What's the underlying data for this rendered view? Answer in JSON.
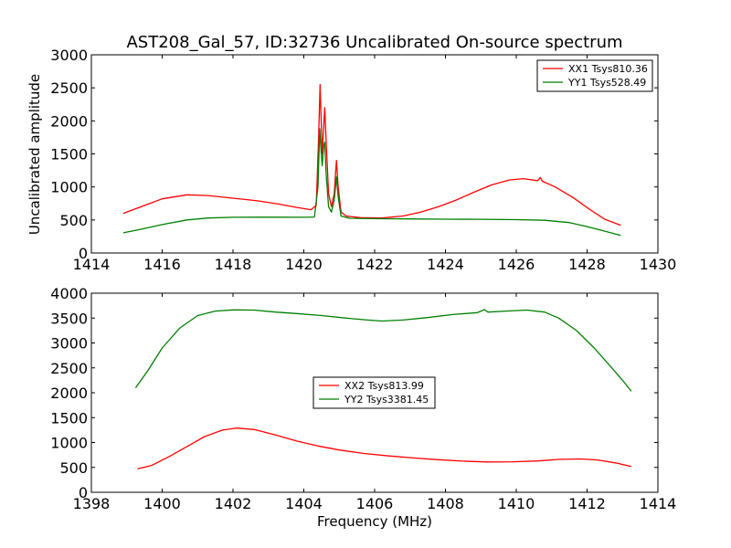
{
  "figure": {
    "title": "AST208_Gal_57, ID:32736 Uncalibrated On-source spectrum",
    "ylabel": "Uncalibrated amplitude",
    "xlabel": "Frequency (MHz)"
  },
  "chart_data": [
    {
      "type": "line",
      "title": "AST208_Gal_57, ID:32736 Uncalibrated On-source spectrum",
      "ylabel": "Uncalibrated amplitude",
      "xlabel": "",
      "xlim": [
        1414,
        1430
      ],
      "ylim": [
        0,
        3000
      ],
      "xticks": [
        1414,
        1416,
        1418,
        1420,
        1422,
        1424,
        1426,
        1428,
        1430
      ],
      "yticks": [
        0,
        500,
        1000,
        1500,
        2000,
        2500,
        3000
      ],
      "legend": "top-right",
      "grid": false,
      "series": [
        {
          "name": "XX1 Tsys810.36",
          "color": "#ff0000",
          "points": [
            [
              1414.9,
              600
            ],
            [
              1415.4,
              700
            ],
            [
              1416.0,
              820
            ],
            [
              1416.7,
              880
            ],
            [
              1417.3,
              870
            ],
            [
              1418.0,
              830
            ],
            [
              1418.7,
              790
            ],
            [
              1419.3,
              740
            ],
            [
              1419.8,
              690
            ],
            [
              1420.2,
              655
            ],
            [
              1420.35,
              720
            ],
            [
              1420.42,
              1800
            ],
            [
              1420.46,
              2550
            ],
            [
              1420.49,
              2000
            ],
            [
              1420.52,
              1500
            ],
            [
              1420.56,
              1900
            ],
            [
              1420.59,
              2200
            ],
            [
              1420.63,
              1700
            ],
            [
              1420.7,
              900
            ],
            [
              1420.78,
              700
            ],
            [
              1420.86,
              900
            ],
            [
              1420.92,
              1400
            ],
            [
              1420.97,
              1000
            ],
            [
              1421.05,
              620
            ],
            [
              1421.2,
              560
            ],
            [
              1421.6,
              535
            ],
            [
              1422.2,
              530
            ],
            [
              1422.8,
              560
            ],
            [
              1423.3,
              620
            ],
            [
              1423.8,
              700
            ],
            [
              1424.3,
              800
            ],
            [
              1424.8,
              920
            ],
            [
              1425.3,
              1030
            ],
            [
              1425.8,
              1105
            ],
            [
              1426.2,
              1125
            ],
            [
              1426.6,
              1095
            ],
            [
              1426.68,
              1140
            ],
            [
              1426.74,
              1085
            ],
            [
              1427.1,
              1000
            ],
            [
              1427.6,
              840
            ],
            [
              1428.1,
              650
            ],
            [
              1428.5,
              510
            ],
            [
              1428.95,
              420
            ]
          ]
        },
        {
          "name": "YY1 Tsys528.49",
          "color": "#008000",
          "points": [
            [
              1414.9,
              305
            ],
            [
              1415.4,
              360
            ],
            [
              1416.0,
              430
            ],
            [
              1416.7,
              500
            ],
            [
              1417.3,
              530
            ],
            [
              1418.0,
              540
            ],
            [
              1418.7,
              542
            ],
            [
              1419.3,
              542
            ],
            [
              1420.0,
              540
            ],
            [
              1420.3,
              545
            ],
            [
              1420.4,
              1000
            ],
            [
              1420.45,
              1880
            ],
            [
              1420.48,
              1600
            ],
            [
              1420.52,
              1320
            ],
            [
              1420.56,
              1620
            ],
            [
              1420.59,
              1680
            ],
            [
              1420.63,
              1200
            ],
            [
              1420.7,
              700
            ],
            [
              1420.78,
              620
            ],
            [
              1420.86,
              800
            ],
            [
              1420.92,
              1150
            ],
            [
              1420.97,
              850
            ],
            [
              1421.05,
              560
            ],
            [
              1421.3,
              525
            ],
            [
              1422.0,
              520
            ],
            [
              1423.0,
              515
            ],
            [
              1424.0,
              512
            ],
            [
              1425.0,
              510
            ],
            [
              1426.0,
              505
            ],
            [
              1426.8,
              495
            ],
            [
              1427.5,
              460
            ],
            [
              1428.0,
              400
            ],
            [
              1428.5,
              330
            ],
            [
              1428.95,
              265
            ]
          ]
        }
      ]
    },
    {
      "type": "line",
      "title": "",
      "ylabel": "",
      "xlabel": "Frequency (MHz)",
      "xlim": [
        1398,
        1414
      ],
      "ylim": [
        0,
        4000
      ],
      "xticks": [
        1398,
        1400,
        1402,
        1404,
        1406,
        1408,
        1410,
        1412,
        1414
      ],
      "yticks": [
        0,
        500,
        1000,
        1500,
        2000,
        2500,
        3000,
        3500,
        4000
      ],
      "legend": "center",
      "grid": false,
      "series": [
        {
          "name": "XX2 Tsys813.99",
          "color": "#ff0000",
          "points": [
            [
              1399.3,
              470
            ],
            [
              1399.7,
              540
            ],
            [
              1400.2,
              720
            ],
            [
              1400.7,
              920
            ],
            [
              1401.2,
              1120
            ],
            [
              1401.7,
              1250
            ],
            [
              1402.1,
              1290
            ],
            [
              1402.6,
              1260
            ],
            [
              1403.2,
              1150
            ],
            [
              1403.8,
              1030
            ],
            [
              1404.4,
              930
            ],
            [
              1405.0,
              850
            ],
            [
              1405.7,
              780
            ],
            [
              1406.4,
              730
            ],
            [
              1407.1,
              690
            ],
            [
              1407.8,
              655
            ],
            [
              1408.5,
              625
            ],
            [
              1409.2,
              610
            ],
            [
              1409.9,
              612
            ],
            [
              1410.6,
              630
            ],
            [
              1411.2,
              660
            ],
            [
              1411.8,
              670
            ],
            [
              1412.3,
              650
            ],
            [
              1412.8,
              590
            ],
            [
              1413.25,
              520
            ]
          ]
        },
        {
          "name": "YY2 Tsys3381.45",
          "color": "#008000",
          "points": [
            [
              1399.25,
              2100
            ],
            [
              1399.6,
              2450
            ],
            [
              1400.0,
              2900
            ],
            [
              1400.5,
              3300
            ],
            [
              1401.0,
              3550
            ],
            [
              1401.5,
              3640
            ],
            [
              1402.0,
              3665
            ],
            [
              1402.6,
              3660
            ],
            [
              1403.2,
              3620
            ],
            [
              1403.8,
              3590
            ],
            [
              1404.5,
              3550
            ],
            [
              1405.2,
              3500
            ],
            [
              1405.8,
              3460
            ],
            [
              1406.2,
              3440
            ],
            [
              1406.8,
              3460
            ],
            [
              1407.5,
              3510
            ],
            [
              1408.2,
              3570
            ],
            [
              1408.9,
              3610
            ],
            [
              1409.1,
              3670
            ],
            [
              1409.2,
              3620
            ],
            [
              1409.7,
              3640
            ],
            [
              1410.3,
              3660
            ],
            [
              1410.8,
              3620
            ],
            [
              1411.2,
              3500
            ],
            [
              1411.7,
              3250
            ],
            [
              1412.2,
              2900
            ],
            [
              1412.7,
              2500
            ],
            [
              1413.0,
              2250
            ],
            [
              1413.25,
              2030
            ]
          ]
        }
      ]
    }
  ]
}
